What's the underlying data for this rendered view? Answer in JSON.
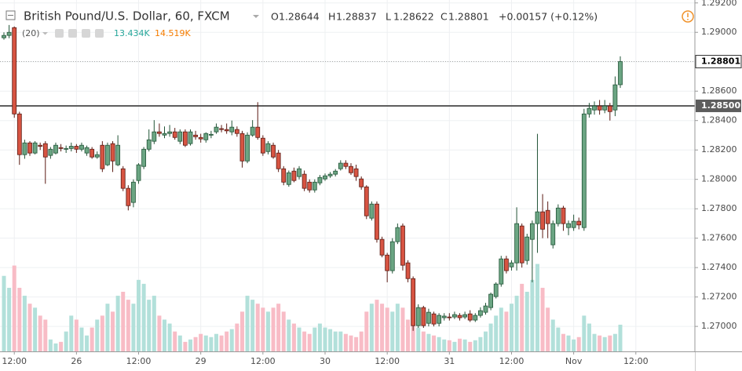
{
  "chart_data": {
    "type": "candlestick",
    "title": "British Pound/U.S. Dollar, 60, FXCM",
    "ohlc_legend": [
      {
        "label": "O",
        "value": "1.28644"
      },
      {
        "label": "H",
        "value": "1.28837"
      },
      {
        "label": "L",
        "value": "1.28622"
      },
      {
        "label": "C",
        "value": "1.28801"
      }
    ],
    "change": "+0.00157 (+0.12%)",
    "indicator": {
      "params": "(20)",
      "values": [
        "13.434K",
        "14.519K"
      ]
    },
    "up_color": "#6ba583",
    "down_color": "#d75442",
    "up_volume_color": "#b2e0da",
    "down_volume_color": "#f8bcc6",
    "ylim": [
      1.2683,
      1.2922
    ],
    "yticks": [
      {
        "value": 1.292,
        "label": "1.29200"
      },
      {
        "value": 1.29,
        "label": "1.29000"
      },
      {
        "value": 1.288,
        "label": "1.28800"
      },
      {
        "value": 1.286,
        "label": "1.28600"
      },
      {
        "value": 1.284,
        "label": "1.28400"
      },
      {
        "value": 1.282,
        "label": "1.28200"
      },
      {
        "value": 1.28,
        "label": "1.28000"
      },
      {
        "value": 1.278,
        "label": "1.27800"
      },
      {
        "value": 1.276,
        "label": "1.27600"
      },
      {
        "value": 1.274,
        "label": "1.27400"
      },
      {
        "value": 1.272,
        "label": "1.27200"
      },
      {
        "value": 1.27,
        "label": "1.27000"
      }
    ],
    "xlim": [
      -0.76,
      133.4
    ],
    "xticks": [
      {
        "value": 2,
        "label": "12:00"
      },
      {
        "value": 14,
        "label": "26"
      },
      {
        "value": 26,
        "label": "12:00"
      },
      {
        "value": 38,
        "label": "29"
      },
      {
        "value": 50,
        "label": "12:00"
      },
      {
        "value": 62,
        "label": "30"
      },
      {
        "value": 74,
        "label": "12:00"
      },
      {
        "value": 86,
        "label": "31"
      },
      {
        "value": 98,
        "label": "12:00"
      },
      {
        "value": 110,
        "label": "Nov"
      },
      {
        "value": 122,
        "label": "12:00"
      }
    ],
    "hlines": [
      {
        "value": 1.285,
        "label": "1.28500"
      }
    ],
    "last_price": {
      "value": 1.28801,
      "label": "1.28801"
    },
    "vlim": [
      0,
      45000
    ],
    "grid": true,
    "x": [
      0,
      1,
      2,
      3,
      4,
      5,
      6,
      7,
      8,
      9,
      10,
      11,
      12,
      13,
      14,
      15,
      16,
      17,
      18,
      19,
      20,
      21,
      22,
      23,
      24,
      25,
      26,
      27,
      28,
      29,
      30,
      31,
      32,
      33,
      34,
      35,
      36,
      37,
      38,
      39,
      40,
      41,
      42,
      43,
      44,
      45,
      46,
      47,
      48,
      49,
      50,
      51,
      52,
      53,
      54,
      55,
      56,
      57,
      58,
      59,
      60,
      61,
      62,
      63,
      64,
      65,
      66,
      67,
      68,
      69,
      70,
      71,
      72,
      73,
      74,
      75,
      76,
      77,
      78,
      79,
      80,
      81,
      82,
      83,
      84,
      85,
      86,
      87,
      88,
      89,
      90,
      91,
      92,
      93,
      94,
      95,
      96,
      97,
      98,
      99,
      100,
      101,
      102,
      103,
      104,
      105,
      106,
      107,
      108,
      109,
      110,
      111,
      112,
      113,
      114,
      115,
      116,
      117,
      118,
      119
    ],
    "ohlc": [
      [
        1.28963,
        1.29,
        1.2895,
        1.28979
      ],
      [
        1.28979,
        1.2905,
        1.2896,
        1.29
      ],
      [
        1.29032,
        1.2904,
        1.28419,
        1.28445
      ],
      [
        1.28445,
        1.2846,
        1.28099,
        1.28168
      ],
      [
        1.28168,
        1.2827,
        1.2814,
        1.28248
      ],
      [
        1.28248,
        1.2826,
        1.2816,
        1.28179
      ],
      [
        1.28179,
        1.2826,
        1.2817,
        1.28248
      ],
      [
        1.28232,
        1.2825,
        1.282,
        1.28225
      ],
      [
        1.28243,
        1.2826,
        1.2797,
        1.28152
      ],
      [
        1.28163,
        1.2822,
        1.2814,
        1.28205
      ],
      [
        1.28179,
        1.2825,
        1.2817,
        1.28232
      ],
      [
        1.28216,
        1.2824,
        1.2819,
        1.2821
      ],
      [
        1.28205,
        1.2823,
        1.2818,
        1.2821
      ],
      [
        1.2821,
        1.2825,
        1.2819,
        1.28225
      ],
      [
        1.28225,
        1.2824,
        1.2818,
        1.28205
      ],
      [
        1.28205,
        1.2825,
        1.2819,
        1.28232
      ],
      [
        1.28179,
        1.2823,
        1.2816,
        1.28216
      ],
      [
        1.28205,
        1.2822,
        1.2814,
        1.28152
      ],
      [
        1.28152,
        1.2819,
        1.2814,
        1.28168
      ],
      [
        1.28232,
        1.2826,
        1.2805,
        1.28072
      ],
      [
        1.28099,
        1.2825,
        1.2809,
        1.28232
      ],
      [
        1.28243,
        1.2826,
        1.2805,
        1.28125
      ],
      [
        1.28099,
        1.283,
        1.2809,
        1.28232
      ],
      [
        1.28072,
        1.2809,
        1.2792,
        1.27939
      ],
      [
        1.27939,
        1.2796,
        1.27789,
        1.27821
      ],
      [
        1.27843,
        1.28,
        1.2781,
        1.27981
      ],
      [
        1.27992,
        1.2811,
        1.2797,
        1.28099
      ],
      [
        1.28088,
        1.2822,
        1.2807,
        1.28205
      ],
      [
        1.28205,
        1.2834,
        1.2819,
        1.28269
      ],
      [
        1.28259,
        1.28403,
        1.2824,
        1.28323
      ],
      [
        1.28323,
        1.2838,
        1.2829,
        1.28312
      ],
      [
        1.28301,
        1.2836,
        1.2828,
        1.28312
      ],
      [
        1.28312,
        1.2837,
        1.2829,
        1.28323
      ],
      [
        1.28323,
        1.2835,
        1.2827,
        1.28285
      ],
      [
        1.28259,
        1.2834,
        1.2824,
        1.28323
      ],
      [
        1.28323,
        1.2834,
        1.2822,
        1.28232
      ],
      [
        1.28243,
        1.2834,
        1.2823,
        1.28323
      ],
      [
        1.28301,
        1.2833,
        1.2827,
        1.2829
      ],
      [
        1.28285,
        1.2831,
        1.2825,
        1.28275
      ],
      [
        1.28269,
        1.2832,
        1.2825,
        1.28312
      ],
      [
        1.28301,
        1.2833,
        1.2828,
        1.28306
      ],
      [
        1.28323,
        1.2838,
        1.2831,
        1.28355
      ],
      [
        1.28345,
        1.2837,
        1.2832,
        1.28339
      ],
      [
        1.28339,
        1.2838,
        1.2831,
        1.2833
      ],
      [
        1.28323,
        1.284,
        1.283,
        1.28355
      ],
      [
        1.28339,
        1.2836,
        1.2829,
        1.28312
      ],
      [
        1.28312,
        1.2833,
        1.2808,
        1.28125
      ],
      [
        1.28125,
        1.2832,
        1.2811,
        1.28301
      ],
      [
        1.28301,
        1.28403,
        1.2829,
        1.28355
      ],
      [
        1.28355,
        1.28525,
        1.2827,
        1.28285
      ],
      [
        1.2828,
        1.283,
        1.2816,
        1.28179
      ],
      [
        1.28189,
        1.2826,
        1.2817,
        1.28243
      ],
      [
        1.28232,
        1.2825,
        1.2814,
        1.28152
      ],
      [
        1.28179,
        1.282,
        1.2805,
        1.28072
      ],
      [
        1.28072,
        1.2809,
        1.2796,
        1.27981
      ],
      [
        1.27965,
        1.2806,
        1.2795,
        1.28045
      ],
      [
        1.28056,
        1.2808,
        1.2798,
        1.27992
      ],
      [
        1.28019,
        1.2809,
        1.28,
        1.28072
      ],
      [
        1.28035,
        1.2806,
        1.2792,
        1.27939
      ],
      [
        1.27981,
        1.28,
        1.2791,
        1.27928
      ],
      [
        1.27928,
        1.28,
        1.2791,
        1.27981
      ],
      [
        1.27976,
        1.2803,
        1.2796,
        1.28013
      ],
      [
        1.28003,
        1.2804,
        1.2799,
        1.28024
      ],
      [
        1.28024,
        1.2805,
        1.2801,
        1.28035
      ],
      [
        1.28035,
        1.2807,
        1.2802,
        1.28056
      ],
      [
        1.28072,
        1.2813,
        1.2806,
        1.2811
      ],
      [
        1.2811,
        1.2813,
        1.2807,
        1.28088
      ],
      [
        1.28088,
        1.2811,
        1.2803,
        1.28045
      ],
      [
        1.28072,
        1.281,
        1.2799,
        1.28019
      ],
      [
        1.28003,
        1.2802,
        1.2793,
        1.27949
      ],
      [
        1.27949,
        1.2796,
        1.2773,
        1.27752
      ],
      [
        1.27736,
        1.2785,
        1.2772,
        1.27832
      ],
      [
        1.27832,
        1.2785,
        1.2757,
        1.27592
      ],
      [
        1.27592,
        1.2761,
        1.2747,
        1.27485
      ],
      [
        1.27485,
        1.275,
        1.273,
        1.27379
      ],
      [
        1.27379,
        1.276,
        1.2736,
        1.27576
      ],
      [
        1.27576,
        1.277,
        1.2756,
        1.27672
      ],
      [
        1.27683,
        1.277,
        1.2738,
        1.27416
      ],
      [
        1.27432,
        1.2745,
        1.273,
        1.27325
      ],
      [
        1.27325,
        1.2734,
        1.2697,
        1.27005
      ],
      [
        1.27005,
        1.2715,
        1.2699,
        1.27128
      ],
      [
        1.27128,
        1.2714,
        1.2699,
        1.27005
      ],
      [
        1.27021,
        1.2712,
        1.27,
        1.27096
      ],
      [
        1.27085,
        1.271,
        1.27,
        1.27016
      ],
      [
        1.27021,
        1.2709,
        1.27,
        1.27075
      ],
      [
        1.27059,
        1.2709,
        1.2704,
        1.2707
      ],
      [
        1.27064,
        1.2709,
        1.2704,
        1.27059
      ],
      [
        1.27064,
        1.271,
        1.2705,
        1.2708
      ],
      [
        1.27075,
        1.2709,
        1.2704,
        1.27059
      ],
      [
        1.27064,
        1.271,
        1.2705,
        1.2708
      ],
      [
        1.27085,
        1.2711,
        1.2703,
        1.27043
      ],
      [
        1.27043,
        1.2709,
        1.2703,
        1.27075
      ],
      [
        1.27075,
        1.2713,
        1.2706,
        1.27107
      ],
      [
        1.27096,
        1.2716,
        1.2708,
        1.27139
      ],
      [
        1.27128,
        1.2723,
        1.2711,
        1.27219
      ],
      [
        1.27203,
        1.273,
        1.2719,
        1.27288
      ],
      [
        1.27288,
        1.2748,
        1.2727,
        1.27459
      ],
      [
        1.27459,
        1.2748,
        1.2736,
        1.27379
      ],
      [
        1.27405,
        1.2745,
        1.2738,
        1.27432
      ],
      [
        1.27432,
        1.2781,
        1.2738,
        1.27699
      ],
      [
        1.27683,
        1.277,
        1.274,
        1.27432
      ],
      [
        1.27448,
        1.2763,
        1.2742,
        1.27608
      ],
      [
        1.27592,
        1.2772,
        1.273,
        1.27699
      ],
      [
        1.27699,
        1.2831,
        1.275,
        1.27779
      ],
      [
        1.27779,
        1.279,
        1.276,
        1.27661
      ],
      [
        1.27789,
        1.2785,
        1.276,
        1.27699
      ],
      [
        1.27555,
        1.2772,
        1.2753,
        1.27699
      ],
      [
        1.27699,
        1.2783,
        1.2768,
        1.27805
      ],
      [
        1.27805,
        1.2782,
        1.2765,
        1.27699
      ],
      [
        1.27672,
        1.2772,
        1.2762,
        1.27699
      ],
      [
        1.27672,
        1.2776,
        1.2765,
        1.27715
      ],
      [
        1.27715,
        1.2774,
        1.2766,
        1.2769
      ],
      [
        1.27672,
        1.2848,
        1.2765,
        1.28445
      ],
      [
        1.28445,
        1.2852,
        1.2842,
        1.28483
      ],
      [
        1.28472,
        1.2853,
        1.2844,
        1.28499
      ],
      [
        1.28499,
        1.2854,
        1.2844,
        1.28472
      ],
      [
        1.28472,
        1.2854,
        1.2845,
        1.28499
      ],
      [
        1.28499,
        1.2852,
        1.284,
        1.28461
      ],
      [
        1.28472,
        1.287,
        1.2843,
        1.28643
      ],
      [
        1.28644,
        1.28837,
        1.28622,
        1.28801
      ]
    ],
    "volume": [
      38000,
      32000,
      43200,
      32000,
      28000,
      24000,
      22000,
      18000,
      16000,
      6000,
      4000,
      4800,
      10000,
      18000,
      16000,
      12000,
      8000,
      12000,
      16000,
      18000,
      24000,
      20000,
      28000,
      30000,
      26000,
      24000,
      36000,
      34000,
      26000,
      28000,
      18000,
      16000,
      14000,
      10000,
      8000,
      4800,
      6000,
      7200,
      8800,
      8000,
      7200,
      8800,
      8000,
      10000,
      11200,
      14000,
      20000,
      28000,
      26000,
      24000,
      22000,
      20000,
      22000,
      24000,
      20000,
      16000,
      14000,
      12000,
      10000,
      8800,
      12000,
      14000,
      12000,
      11200,
      10000,
      10000,
      8800,
      8000,
      7200,
      10000,
      20000,
      24000,
      26000,
      24000,
      22000,
      20000,
      24000,
      22000,
      16000,
      14000,
      12000,
      10000,
      8800,
      8000,
      7200,
      6000,
      5600,
      4800,
      6400,
      6000,
      4800,
      5600,
      7200,
      10000,
      14000,
      18000,
      22000,
      20000,
      24000,
      28000,
      34000,
      30000,
      36000,
      44000,
      32000,
      22000,
      16000,
      12000,
      8800,
      8000,
      6000,
      7200,
      18000,
      14000,
      8800,
      8000,
      7200,
      8000,
      8800,
      13434
    ]
  }
}
